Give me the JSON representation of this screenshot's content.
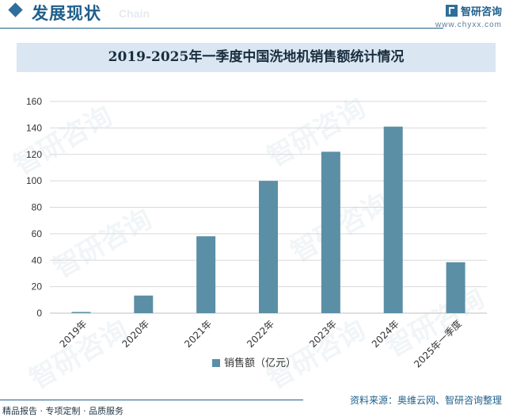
{
  "header": {
    "section_title": "发展现状",
    "section_subtitle": "Chain",
    "logo_name": "智研咨询",
    "logo_url": "www.chyxx.com"
  },
  "watermark_text": "智研咨询",
  "footer": {
    "left": "精品报告 · 专项定制 · 品质服务",
    "source": "资料来源：奥维云网、智研咨询整理"
  },
  "colors": {
    "bar": "#5b8fa6",
    "accent": "#1f5f8b",
    "title_band": "#dae6f2"
  },
  "chart_data": {
    "type": "bar",
    "title": "2019-2025年一季度中国洗地机销售额统计情况",
    "categories": [
      "2019年",
      "2020年",
      "2021年",
      "2022年",
      "2023年",
      "2024年",
      "2025年一季度"
    ],
    "series": [
      {
        "name": "销售额（亿元）",
        "values": [
          0.9,
          13.3,
          58.1,
          100,
          122,
          141,
          38.5
        ]
      }
    ],
    "ylim": [
      0,
      160
    ],
    "yticks": [
      0,
      20,
      40,
      60,
      80,
      100,
      120,
      140,
      160
    ],
    "grid": true,
    "legend": "bottom"
  }
}
